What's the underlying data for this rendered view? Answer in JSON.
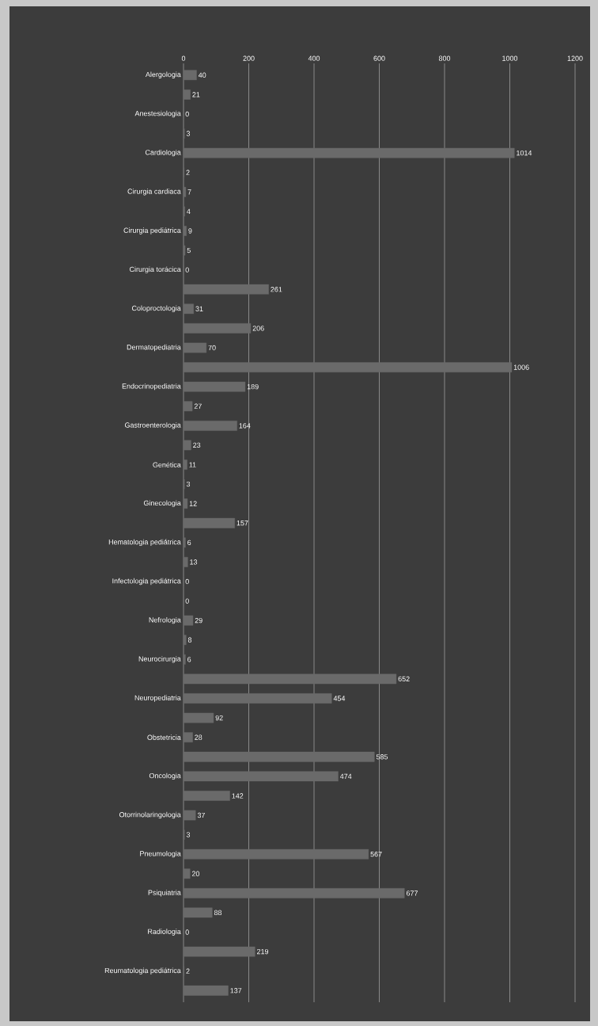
{
  "chart_data": {
    "type": "bar",
    "orientation": "horizontal",
    "categories": [
      "Alergologia",
      null,
      "Anestesiologia",
      null,
      "Cardiologia",
      null,
      "Cirurgia cardiaca",
      null,
      "Cirurgia pediátrica",
      null,
      "Cirurgia torácica",
      null,
      "Coloproctologia",
      null,
      "Dermatopediatria",
      null,
      "Endocrinopediatria",
      null,
      "Gastroenterologia",
      null,
      "Genética",
      null,
      "Ginecologia",
      null,
      "Hematologia pediátrica",
      null,
      "Infectologia pediátrica",
      null,
      "Nefrologia",
      null,
      "Neurocirurgia",
      null,
      "Neuropediatria",
      null,
      "Obstetricia",
      null,
      "Oncologia",
      null,
      "Otorrinolaringologia",
      null,
      "Pneumologia",
      null,
      "Psiquiatria",
      null,
      "Radiologia",
      null,
      "Reumatologia pediátrica",
      null
    ],
    "values": [
      40,
      21,
      0,
      3,
      1014,
      2,
      7,
      4,
      9,
      5,
      0,
      261,
      31,
      206,
      70,
      1006,
      189,
      27,
      164,
      23,
      11,
      3,
      12,
      157,
      6,
      13,
      0,
      0,
      29,
      8,
      6,
      652,
      454,
      92,
      28,
      585,
      474,
      142,
      37,
      3,
      567,
      20,
      677,
      88,
      0,
      219,
      2,
      137
    ],
    "color": "#6a6a6a",
    "xlim": [
      0,
      1200
    ],
    "xticks": [
      0,
      200,
      400,
      600,
      800,
      1000,
      1200
    ],
    "grid": "x",
    "data_labels": true
  }
}
